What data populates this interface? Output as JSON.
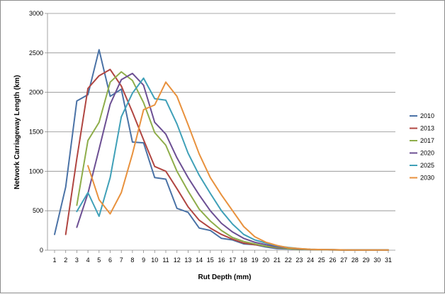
{
  "chart_data": {
    "type": "line",
    "xlabel": "Rut Depth (mm)",
    "ylabel": "Network Carriageway Length (km)",
    "xlim": [
      1,
      31
    ],
    "ylim": [
      0,
      3000
    ],
    "x_ticks": [
      1,
      2,
      3,
      4,
      5,
      6,
      7,
      8,
      9,
      10,
      11,
      12,
      13,
      14,
      15,
      16,
      17,
      18,
      19,
      20,
      21,
      22,
      23,
      24,
      25,
      26,
      27,
      28,
      29,
      30,
      31
    ],
    "y_ticks": [
      0,
      500,
      1000,
      1500,
      2000,
      2500,
      3000
    ],
    "grid": "horizontal",
    "legend_position": "right",
    "series": [
      {
        "name": "2010",
        "color": "#4a72a6",
        "x": [
          1,
          2,
          3,
          4,
          5,
          6,
          7,
          8,
          9,
          10,
          11,
          12,
          13,
          14,
          15,
          16,
          17,
          18,
          19,
          20,
          21,
          22,
          23,
          24,
          25,
          26,
          27,
          28,
          29,
          30,
          31
        ],
        "values": [
          200,
          800,
          1890,
          1970,
          2540,
          1950,
          2040,
          1370,
          1360,
          920,
          900,
          530,
          480,
          280,
          250,
          150,
          130,
          80,
          70,
          40,
          20,
          15,
          10,
          8,
          5,
          5,
          3,
          2,
          2,
          2,
          2
        ]
      },
      {
        "name": "2013",
        "color": "#b04541",
        "x": [
          2,
          3,
          4,
          5,
          6,
          7,
          8,
          9,
          10,
          11,
          12,
          13,
          14,
          15,
          16,
          17,
          18,
          19,
          20,
          21,
          22,
          23,
          24,
          25,
          26,
          27,
          28,
          29,
          30,
          31
        ],
        "values": [
          200,
          1160,
          2050,
          2210,
          2290,
          2080,
          1750,
          1400,
          1060,
          1000,
          780,
          550,
          380,
          280,
          200,
          140,
          90,
          70,
          50,
          30,
          20,
          10,
          8,
          5,
          4,
          3,
          2,
          2,
          2,
          2
        ]
      },
      {
        "name": "2017",
        "color": "#8ead4a",
        "x": [
          3,
          4,
          5,
          6,
          7,
          8,
          9,
          10,
          11,
          12,
          13,
          14,
          15,
          16,
          17,
          18,
          19,
          20,
          21,
          22,
          23,
          24,
          25,
          26,
          27,
          28,
          29,
          30,
          31
        ],
        "values": [
          570,
          1390,
          1620,
          2130,
          2260,
          2150,
          1870,
          1490,
          1330,
          1000,
          750,
          520,
          370,
          250,
          160,
          110,
          80,
          50,
          35,
          20,
          10,
          8,
          5,
          4,
          3,
          2,
          2,
          2,
          2
        ]
      },
      {
        "name": "2020",
        "color": "#6c4f93",
        "x": [
          3,
          4,
          5,
          6,
          7,
          8,
          9,
          10,
          11,
          12,
          13,
          14,
          15,
          16,
          17,
          18,
          19,
          20,
          21,
          22,
          23,
          24,
          25,
          26,
          27,
          28,
          29,
          30,
          31
        ],
        "values": [
          290,
          720,
          1280,
          1850,
          2160,
          2240,
          2090,
          1620,
          1470,
          1170,
          920,
          700,
          500,
          340,
          230,
          150,
          100,
          70,
          45,
          30,
          15,
          10,
          8,
          5,
          4,
          3,
          2,
          2,
          2
        ]
      },
      {
        "name": "2025",
        "color": "#3fa0b8",
        "x": [
          3,
          4,
          5,
          6,
          7,
          8,
          9,
          10,
          11,
          12,
          13,
          14,
          15,
          16,
          17,
          18,
          19,
          20,
          21,
          22,
          23,
          24,
          25,
          26,
          27,
          28,
          29,
          30,
          31
        ],
        "values": [
          490,
          730,
          430,
          920,
          1690,
          1990,
          2180,
          1920,
          1900,
          1600,
          1230,
          950,
          720,
          500,
          330,
          200,
          130,
          90,
          55,
          35,
          20,
          12,
          8,
          6,
          4,
          3,
          2,
          2,
          2
        ]
      },
      {
        "name": "2030",
        "color": "#e8913d",
        "x": [
          4,
          5,
          6,
          7,
          8,
          9,
          10,
          11,
          12,
          13,
          14,
          15,
          16,
          17,
          18,
          19,
          20,
          21,
          22,
          23,
          24,
          25,
          26,
          27,
          28,
          29,
          30,
          31
        ],
        "values": [
          1070,
          640,
          460,
          730,
          1220,
          1780,
          1840,
          2130,
          1950,
          1590,
          1220,
          920,
          700,
          500,
          300,
          170,
          100,
          60,
          30,
          20,
          12,
          8,
          6,
          4,
          3,
          3,
          2,
          2
        ]
      }
    ]
  }
}
